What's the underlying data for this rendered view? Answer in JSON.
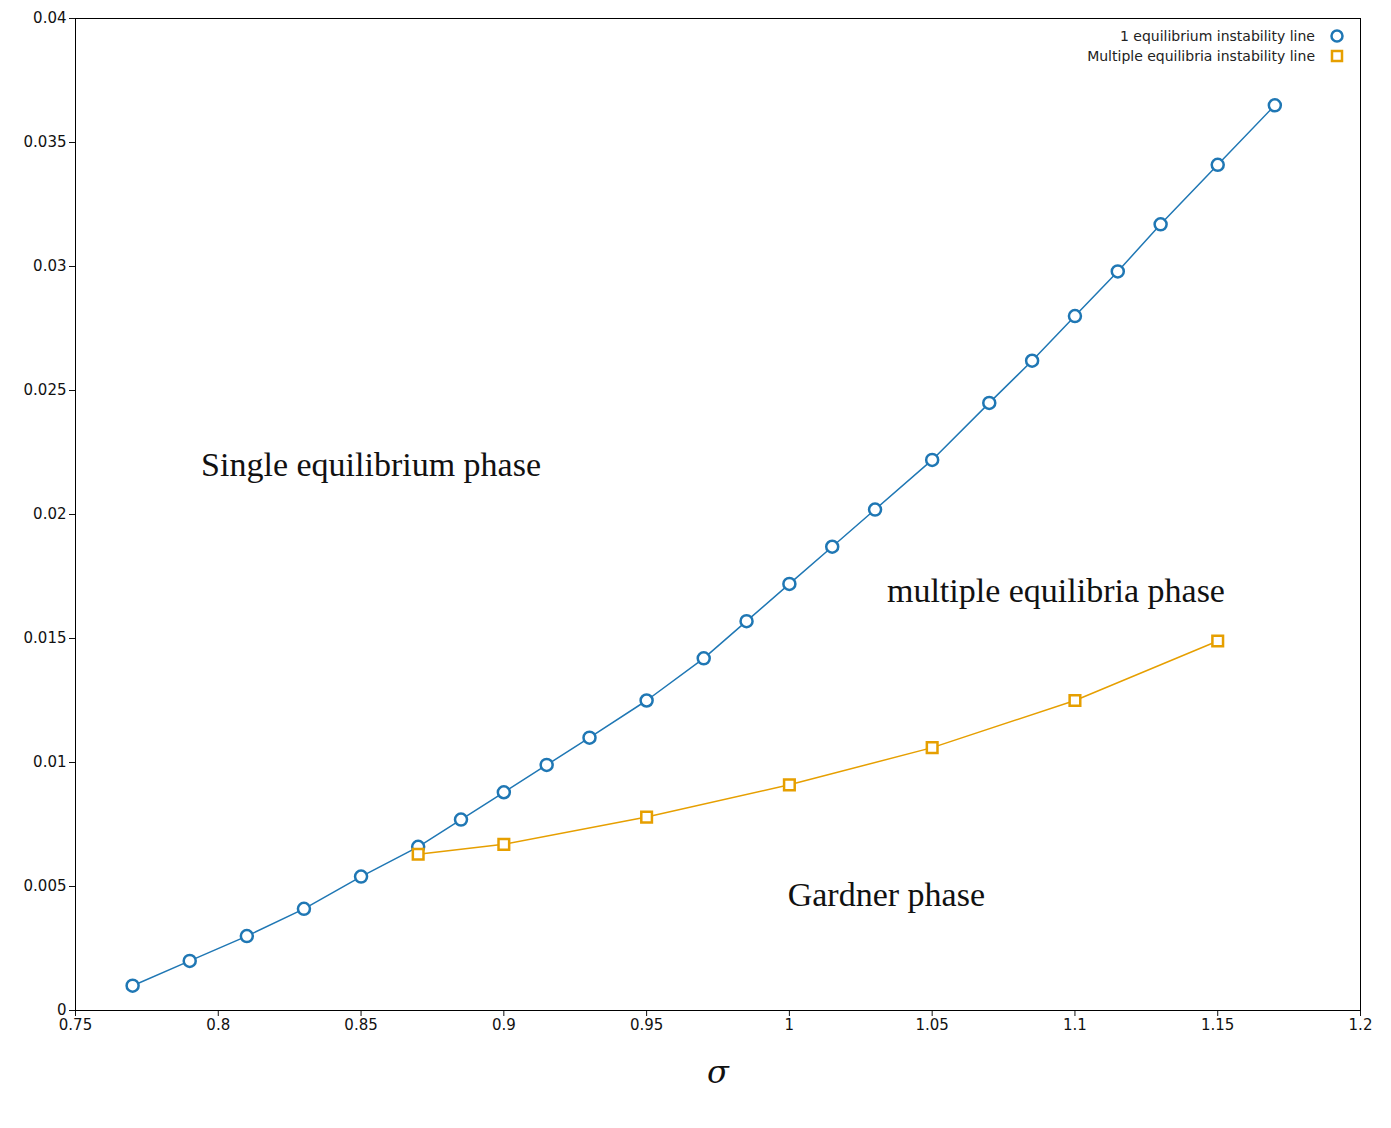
{
  "chart_data": {
    "type": "line",
    "x_label": "σ",
    "y_label": null,
    "xlim": [
      0.75,
      1.2
    ],
    "ylim": [
      0,
      0.04
    ],
    "xticks": [
      0.75,
      0.8,
      0.85,
      0.9,
      0.95,
      1,
      1.05,
      1.1,
      1.15,
      1.2
    ],
    "yticks": [
      0,
      0.005,
      0.01,
      0.015,
      0.02,
      0.025,
      0.03,
      0.035,
      0.04
    ],
    "grid": false,
    "legend": "top right",
    "annotations": [
      "Single equilibrium phase",
      "multiple equilibria phase",
      "Gardner phase"
    ],
    "series": [
      {
        "name": "1 equilibrium  instability line",
        "color": "#1f77b4",
        "marker": "circle",
        "line_style": "solid",
        "x": [
          0.77,
          0.79,
          0.81,
          0.83,
          0.85,
          0.87,
          0.885,
          0.9,
          0.915,
          0.93,
          0.95,
          0.97,
          0.985,
          1.0,
          1.015,
          1.03,
          1.05,
          1.07,
          1.085,
          1.1,
          1.115,
          1.13,
          1.15,
          1.17
        ],
        "values": [
          0.001,
          0.002,
          0.003,
          0.0041,
          0.0054,
          0.0066,
          0.0077,
          0.0088,
          0.0099,
          0.011,
          0.0125,
          0.0142,
          0.0157,
          0.0172,
          0.0187,
          0.0202,
          0.0222,
          0.0245,
          0.0262,
          0.028,
          0.0298,
          0.0317,
          0.0341,
          0.0365
        ]
      },
      {
        "name": "Multiple equilibria instability line",
        "color": "#e69f00",
        "marker": "square",
        "line_style": "solid",
        "x": [
          0.87,
          0.9,
          0.95,
          1.0,
          1.05,
          1.1,
          1.15
        ],
        "values": [
          0.0063,
          0.0067,
          0.0078,
          0.0091,
          0.0106,
          0.0125,
          0.0149
        ]
      }
    ]
  }
}
